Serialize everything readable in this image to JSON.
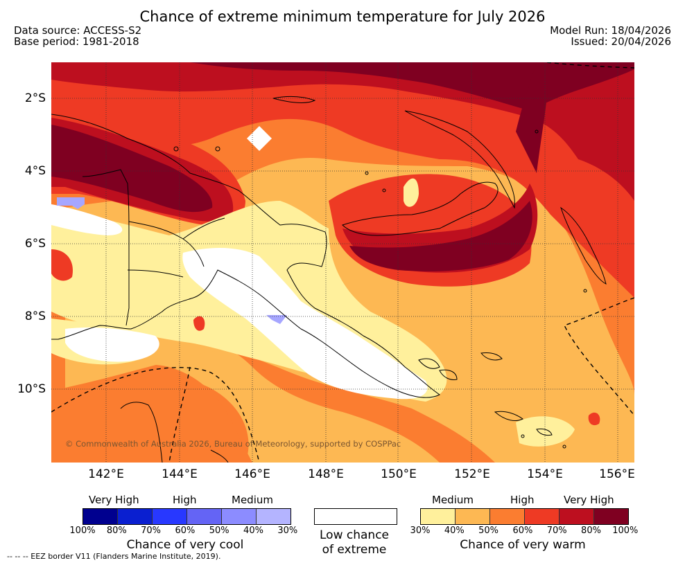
{
  "title": "Chance of extreme minimum temperature for July 2026",
  "meta": {
    "source": "Data source: ACCESS-S2",
    "base_period": "Base period: 1981-2018",
    "model_run": "Model Run: 18/04/2026",
    "issued": "Issued: 20/04/2026"
  },
  "axes": {
    "lat_labels": [
      "2°S",
      "4°S",
      "6°S",
      "8°S",
      "10°S"
    ],
    "lon_labels": [
      "142°E",
      "144°E",
      "146°E",
      "148°E",
      "150°E",
      "152°E",
      "154°E",
      "156°E"
    ]
  },
  "copyright": "© Commonwealth of Australia 2026, Bureau of Meteorology, supported by COSPPac",
  "legend_cool": {
    "headers": [
      "Very High",
      "High",
      "Medium"
    ],
    "colors": [
      "#00008f",
      "#0a1fd0",
      "#2838ff",
      "#6464f5",
      "#8c8cff",
      "#b4b4ff"
    ],
    "ticks": [
      "100%",
      "80%",
      "70%",
      "60%",
      "50%",
      "40%",
      "30%"
    ],
    "label": "Chance of very cool"
  },
  "legend_low": {
    "label_line1": "Low chance",
    "label_line2": "of extreme"
  },
  "legend_warm": {
    "headers": [
      "Medium",
      "High",
      "Very High"
    ],
    "colors": [
      "#fff09c",
      "#fdb853",
      "#fb7d30",
      "#ee3a24",
      "#bd0f1f",
      "#7f0021"
    ],
    "ticks": [
      "30%",
      "40%",
      "50%",
      "60%",
      "70%",
      "80%",
      "100%"
    ],
    "label": "Chance of very warm"
  },
  "footnote": "--  --  -- EEZ border V11 (Flanders Marine Institute, 2019)."
}
